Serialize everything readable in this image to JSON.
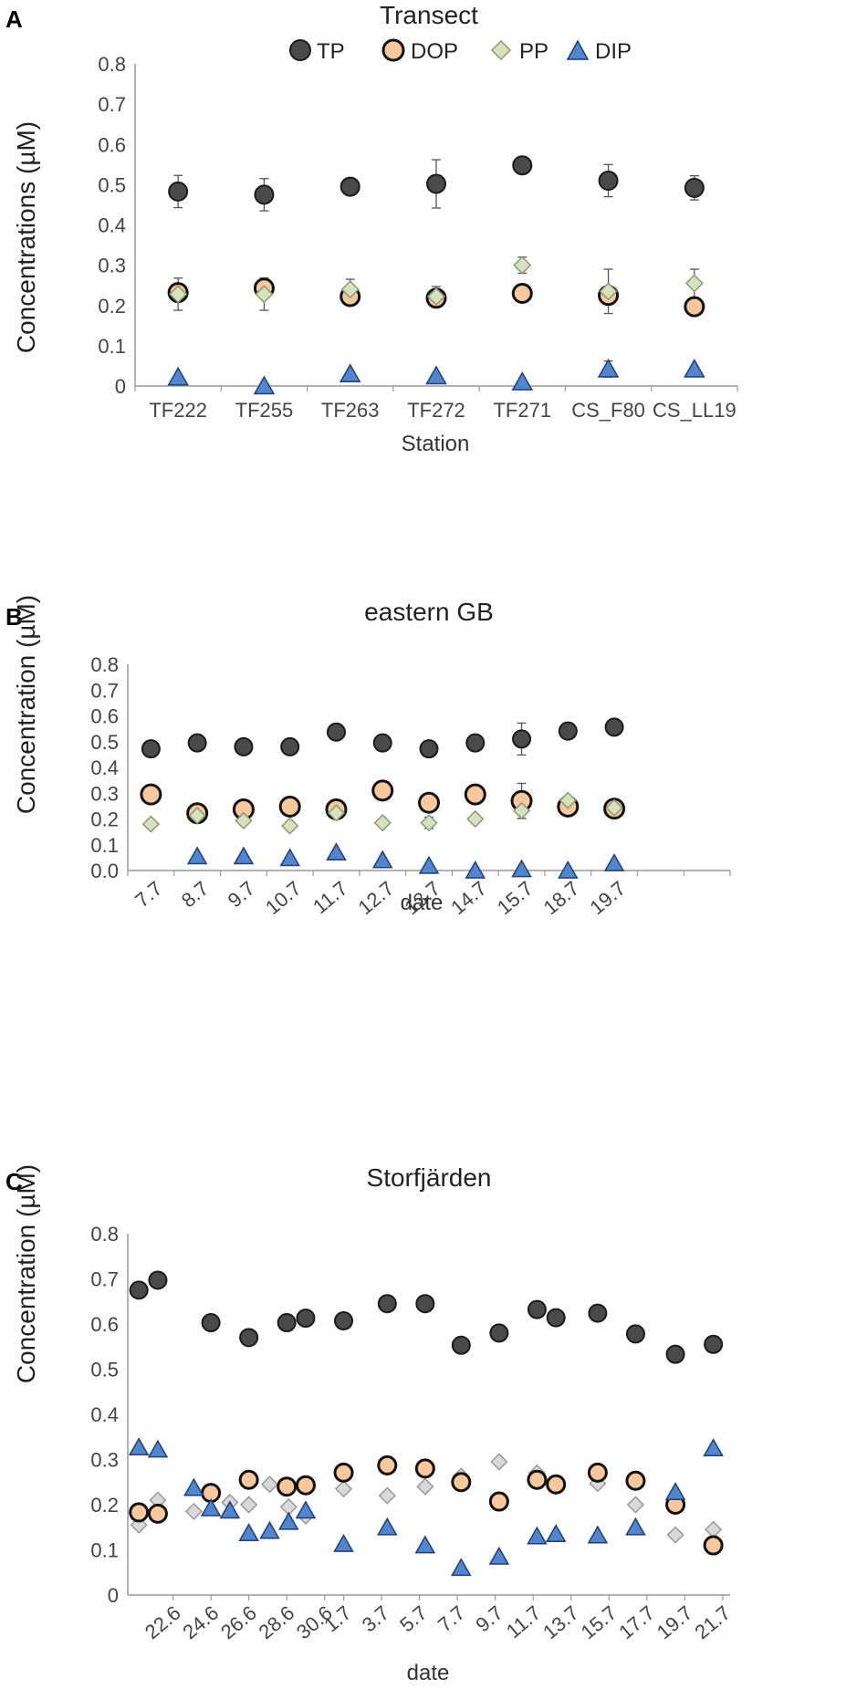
{
  "chart_data": [
    {
      "panel": "A",
      "type": "scatter",
      "title": "Transect",
      "xlabel": "Station",
      "ylabel": "Concentrations (µM)",
      "ylim": [
        0,
        0.8
      ],
      "yticks": [
        "0",
        "0.1",
        "0.2",
        "0.3",
        "0.4",
        "0.5",
        "0.6",
        "0.7",
        "0.8"
      ],
      "categories": [
        "TF222",
        "TF255",
        "TF263",
        "TF272",
        "TF271",
        "CS_F80",
        "CS_LL19"
      ],
      "legend": [
        "TP",
        "DOP",
        "PP",
        "DIP"
      ],
      "series": [
        {
          "name": "TP",
          "values": [
            0.483,
            0.475,
            0.495,
            0.502,
            0.548,
            0.51,
            0.492
          ],
          "errors": [
            0.04,
            0.04,
            0,
            0.06,
            0,
            0.04,
            0.03
          ]
        },
        {
          "name": "DOP",
          "values": [
            0.232,
            0.243,
            0.222,
            0.218,
            0.23,
            0.225,
            0.197
          ],
          "errors": [
            0,
            0,
            0,
            0,
            0,
            0,
            0
          ]
        },
        {
          "name": "PP",
          "values": [
            0.228,
            0.228,
            0.24,
            0.222,
            0.3,
            0.235,
            0.255
          ],
          "errors": [
            0.04,
            0.04,
            0.025,
            0.025,
            0.02,
            0.055,
            0.035
          ]
        },
        {
          "name": "DIP",
          "values": [
            0.022,
            0.0,
            0.03,
            0.025,
            0.01,
            0.042,
            0.042
          ],
          "errors": [
            0,
            0,
            0,
            0,
            0,
            0.02,
            0
          ]
        }
      ]
    },
    {
      "panel": "B",
      "type": "scatter",
      "title": "eastern GB",
      "xlabel": "date",
      "ylabel": "Concentration (µM)",
      "ylim": [
        0,
        0.8
      ],
      "yticks": [
        "0.0",
        "0.1",
        "0.2",
        "0.3",
        "0.4",
        "0.5",
        "0.6",
        "0.7",
        "0.8"
      ],
      "categories": [
        "7.7",
        "8.7",
        "9.7",
        "10.7",
        "11.7",
        "12.7",
        "13.7",
        "14.7",
        "15.7",
        "18.7",
        "19.7"
      ],
      "extra_slots": 2,
      "series": [
        {
          "name": "TP",
          "values": [
            0.472,
            0.495,
            0.48,
            0.48,
            0.537,
            0.495,
            0.472,
            0.495,
            0.51,
            0.541,
            0.556
          ],
          "errors": [
            0,
            0,
            0.02,
            0,
            0,
            0,
            0,
            0,
            0.062,
            0,
            0.028
          ]
        },
        {
          "name": "DOP",
          "values": [
            0.295,
            0.222,
            0.237,
            0.248,
            0.237,
            0.31,
            0.263,
            0.295,
            0.27,
            0.248,
            0.24
          ],
          "errors": [
            0,
            0,
            0,
            0,
            0,
            0,
            0,
            0,
            0.068,
            0,
            0
          ]
        },
        {
          "name": "PP",
          "values": [
            0.18,
            0.213,
            0.193,
            0.173,
            0.223,
            0.185,
            0.185,
            0.2,
            0.232,
            0.272,
            0.243
          ],
          "errors": [
            0,
            0,
            0,
            0,
            0,
            0,
            0.022,
            0,
            0.03,
            0,
            0
          ]
        },
        {
          "name": "DIP",
          "values": [
            0.055,
            0.055,
            0.048,
            0.07,
            0.04,
            0.018,
            0.0,
            0.005,
            0.0,
            0.028
          ],
          "x_index": [
            1,
            2,
            3,
            4,
            5,
            6,
            7,
            8,
            9,
            10
          ],
          "errors": [
            0,
            0,
            0,
            0,
            0,
            0,
            0,
            0,
            0,
            0
          ]
        }
      ]
    },
    {
      "panel": "C",
      "type": "scatter",
      "title": "Storfjärden",
      "xlabel": "date",
      "ylabel": "Concentration (µM)",
      "ylim": [
        0,
        0.8
      ],
      "yticks": [
        "0",
        "0.1",
        "0.2",
        "0.3",
        "0.4",
        "0.5",
        "0.6",
        "0.7",
        "0.8"
      ],
      "x_tick_labels": [
        "22.6",
        "24.6",
        "26.6",
        "28.6",
        "30.6",
        "1.7",
        "3.7",
        "5.7",
        "7.7",
        "9.7",
        "11.7",
        "13.7",
        "15.7",
        "17.7",
        "19.7",
        "21.7"
      ],
      "x_tick_days": [
        2,
        4,
        6,
        8,
        10,
        11,
        13,
        15,
        17,
        19,
        21,
        23,
        25,
        27,
        29,
        31
      ],
      "xlim_days": [
        0,
        31
      ],
      "series": [
        {
          "name": "TP",
          "x_days": [
            0.2,
            1.2,
            4.0,
            6.0,
            8.0,
            9.0,
            11.0,
            13.3,
            15.3,
            17.2,
            19.2,
            21.2,
            22.2,
            24.4,
            26.4,
            28.5,
            30.5
          ],
          "values": [
            0.675,
            0.697,
            0.603,
            0.57,
            0.603,
            0.613,
            0.607,
            0.645,
            0.645,
            0.553,
            0.58,
            0.632,
            0.614,
            0.624,
            0.578,
            0.533,
            0.555
          ]
        },
        {
          "name": "DOP",
          "x_days": [
            0.2,
            1.2,
            4.0,
            6.0,
            8.0,
            9.0,
            11.0,
            13.3,
            15.3,
            17.2,
            19.2,
            21.2,
            22.2,
            24.4,
            26.4,
            28.5,
            30.5
          ],
          "values": [
            0.183,
            0.18,
            0.226,
            0.255,
            0.24,
            0.243,
            0.271,
            0.287,
            0.28,
            0.25,
            0.207,
            0.255,
            0.245,
            0.271,
            0.253,
            0.2,
            0.11
          ]
        },
        {
          "name": "PP",
          "x_days": [
            0.2,
            1.2,
            3.1,
            5.0,
            6.0,
            7.1,
            8.1,
            9.0,
            11.0,
            13.3,
            15.3,
            17.2,
            19.2,
            21.2,
            22.2,
            24.4,
            26.4,
            28.5,
            30.5
          ],
          "values": [
            0.155,
            0.21,
            0.185,
            0.205,
            0.2,
            0.245,
            0.195,
            0.175,
            0.235,
            0.22,
            0.24,
            0.263,
            0.295,
            0.27,
            0.24,
            0.247,
            0.2,
            0.133,
            0.145
          ]
        },
        {
          "name": "DIP",
          "x_days": [
            0.2,
            1.2,
            3.1,
            4.0,
            5.0,
            6.0,
            7.1,
            8.1,
            9.0,
            11.0,
            13.3,
            15.3,
            17.2,
            19.2,
            21.2,
            22.2,
            24.4,
            26.4,
            28.5,
            30.5
          ],
          "values": [
            0.327,
            0.322,
            0.237,
            0.192,
            0.187,
            0.137,
            0.142,
            0.162,
            0.187,
            0.113,
            0.15,
            0.11,
            0.06,
            0.085,
            0.13,
            0.135,
            0.132,
            0.15,
            0.228,
            0.325
          ]
        }
      ]
    }
  ],
  "marker_colors": {
    "TP": {
      "fill": "#4a4a4a",
      "stroke": "#1a1a1a"
    },
    "DOP": {
      "fill": "#f8c79b",
      "stroke": "#111111"
    },
    "PP_A": {
      "fill": "#d6e2be",
      "stroke": "#8a9a70"
    },
    "PP_B": {
      "fill": "#d6e2be",
      "stroke": "#8a9a70"
    },
    "PP_C": {
      "fill": "#d9d9d9",
      "stroke": "#9a9a9a"
    },
    "DIP": {
      "fill": "#4f86cf",
      "stroke": "#1f3f77"
    }
  }
}
